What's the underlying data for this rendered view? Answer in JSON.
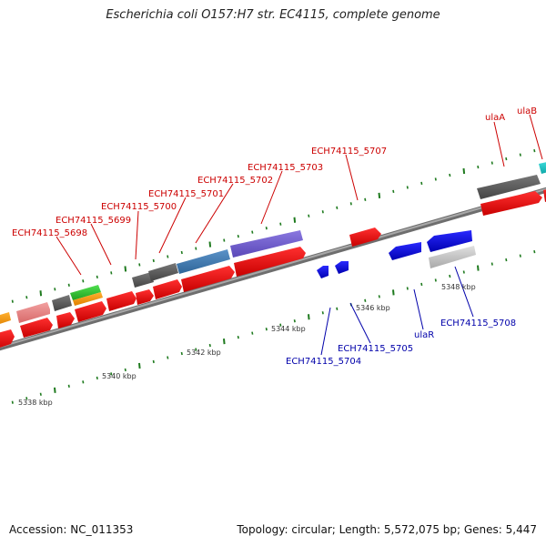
{
  "title": "Escherichia coli O157:H7 str. EC4115, complete genome",
  "footer": {
    "accession": "Accession: NC_011353",
    "summary": "Topology: circular; Length: 5,572,075 bp; Genes: 5,447"
  },
  "colors": {
    "forward_label": "#cc0000",
    "reverse_label": "#0000aa",
    "backbone": "#8a8a8a",
    "tick": "#1e7a1e",
    "scale_text": "#333333"
  },
  "scale_labels": [
    "5338 kbp",
    "5340 kbp",
    "5342 kbp",
    "5344 kbp",
    "5346 kbp",
    "5348 kbp"
  ],
  "forward_labels": [
    "ECH74115_5698",
    "ECH74115_5699",
    "ECH74115_5700",
    "ECH74115_5701",
    "ECH74115_5702",
    "ECH74115_5703",
    "ECH74115_5707",
    "ulaA",
    "ulaB"
  ],
  "reverse_labels": [
    "ECH74115_5704",
    "ECH74115_5705",
    "ulaR",
    "ECH74115_5708"
  ]
}
